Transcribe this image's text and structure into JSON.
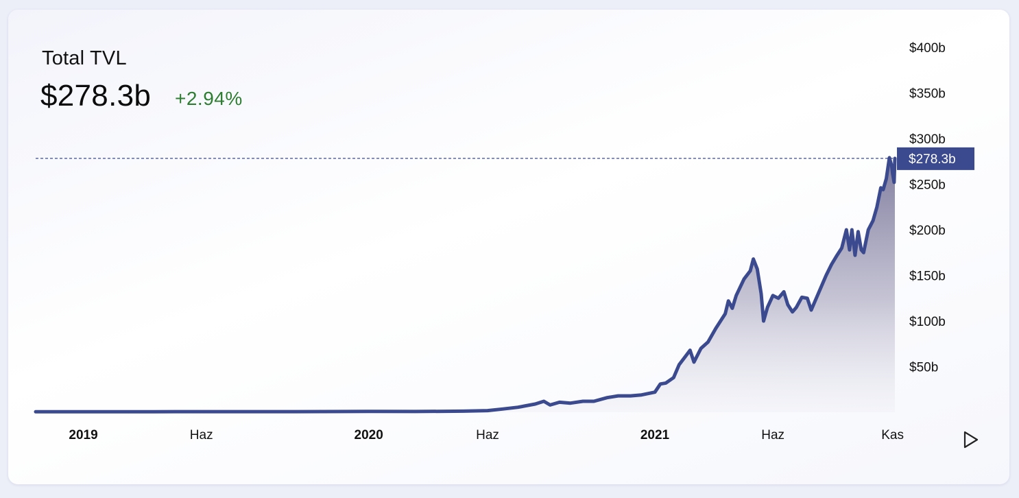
{
  "header": {
    "title": "Total TVL",
    "value": "$278.3b",
    "change": "+2.94%"
  },
  "colors": {
    "line": "#3b4a8f",
    "positive": "#2e7d32",
    "price_tag": "#3b4a8f"
  },
  "controls": {
    "play_icon": "play-icon"
  },
  "chart_data": {
    "type": "area",
    "x_ticks": [
      {
        "label": "2019",
        "date": "2019-01-01",
        "bold": true
      },
      {
        "label": "Haz",
        "date": "2019-06-01",
        "bold": false
      },
      {
        "label": "2020",
        "date": "2020-01-01",
        "bold": true
      },
      {
        "label": "Haz",
        "date": "2020-06-01",
        "bold": false
      },
      {
        "label": "2021",
        "date": "2021-01-01",
        "bold": true
      },
      {
        "label": "Haz",
        "date": "2021-06-01",
        "bold": false
      },
      {
        "label": "Kas",
        "date": "2021-11-01",
        "bold": false
      }
    ],
    "y_ticks": [
      {
        "label": "$50b",
        "value": 50
      },
      {
        "label": "$100b",
        "value": 100
      },
      {
        "label": "$150b",
        "value": 150
      },
      {
        "label": "$200b",
        "value": 200
      },
      {
        "label": "$250b",
        "value": 250
      },
      {
        "label": "$300b",
        "value": 300
      },
      {
        "label": "$350b",
        "value": 350
      },
      {
        "label": "$400b",
        "value": 400
      }
    ],
    "ylim": [
      0,
      400
    ],
    "xlim": [
      "2018-11-01",
      "2021-11-04"
    ],
    "current": {
      "label": "$278.3b",
      "value": 278.3
    },
    "series": [
      {
        "points": [
          [
            "2018-11-01",
            0.5
          ],
          [
            "2019-01-01",
            0.5
          ],
          [
            "2019-04-01",
            0.6
          ],
          [
            "2019-07-01",
            0.7
          ],
          [
            "2019-10-01",
            0.7
          ],
          [
            "2020-01-01",
            0.9
          ],
          [
            "2020-03-01",
            0.8
          ],
          [
            "2020-05-01",
            1.2
          ],
          [
            "2020-06-01",
            1.8
          ],
          [
            "2020-06-20",
            3.5
          ],
          [
            "2020-07-10",
            5.5
          ],
          [
            "2020-08-01",
            9
          ],
          [
            "2020-08-12",
            12
          ],
          [
            "2020-08-20",
            8
          ],
          [
            "2020-09-01",
            11
          ],
          [
            "2020-09-15",
            10
          ],
          [
            "2020-10-01",
            12
          ],
          [
            "2020-10-15",
            12
          ],
          [
            "2020-11-01",
            16
          ],
          [
            "2020-11-15",
            18
          ],
          [
            "2020-12-01",
            18
          ],
          [
            "2020-12-15",
            19
          ],
          [
            "2021-01-01",
            22
          ],
          [
            "2021-01-08",
            31
          ],
          [
            "2021-01-15",
            32
          ],
          [
            "2021-01-25",
            38
          ],
          [
            "2021-02-01",
            52
          ],
          [
            "2021-02-08",
            60
          ],
          [
            "2021-02-15",
            68
          ],
          [
            "2021-02-20",
            55
          ],
          [
            "2021-03-01",
            70
          ],
          [
            "2021-03-10",
            77
          ],
          [
            "2021-03-20",
            92
          ],
          [
            "2021-04-01",
            108
          ],
          [
            "2021-04-05",
            122
          ],
          [
            "2021-04-10",
            114
          ],
          [
            "2021-04-15",
            128
          ],
          [
            "2021-04-25",
            146
          ],
          [
            "2021-05-03",
            155
          ],
          [
            "2021-05-07",
            168
          ],
          [
            "2021-05-12",
            157
          ],
          [
            "2021-05-17",
            130
          ],
          [
            "2021-05-20",
            100
          ],
          [
            "2021-05-25",
            115
          ],
          [
            "2021-06-01",
            128
          ],
          [
            "2021-06-08",
            125
          ],
          [
            "2021-06-15",
            132
          ],
          [
            "2021-06-20",
            118
          ],
          [
            "2021-06-26",
            110
          ],
          [
            "2021-07-01",
            115
          ],
          [
            "2021-07-08",
            126
          ],
          [
            "2021-07-15",
            125
          ],
          [
            "2021-07-20",
            112
          ],
          [
            "2021-07-25",
            122
          ],
          [
            "2021-08-01",
            136
          ],
          [
            "2021-08-08",
            150
          ],
          [
            "2021-08-15",
            162
          ],
          [
            "2021-08-22",
            172
          ],
          [
            "2021-08-28",
            180
          ],
          [
            "2021-09-03",
            200
          ],
          [
            "2021-09-07",
            178
          ],
          [
            "2021-09-10",
            200
          ],
          [
            "2021-09-14",
            172
          ],
          [
            "2021-09-18",
            198
          ],
          [
            "2021-09-22",
            178
          ],
          [
            "2021-09-25",
            175
          ],
          [
            "2021-10-01",
            200
          ],
          [
            "2021-10-07",
            210
          ],
          [
            "2021-10-12",
            225
          ],
          [
            "2021-10-17",
            246
          ],
          [
            "2021-10-20",
            244
          ],
          [
            "2021-10-24",
            256
          ],
          [
            "2021-10-28",
            279
          ],
          [
            "2021-10-31",
            270
          ],
          [
            "2021-11-01",
            262
          ],
          [
            "2021-11-03",
            252
          ],
          [
            "2021-11-04",
            278.3
          ]
        ]
      }
    ]
  }
}
